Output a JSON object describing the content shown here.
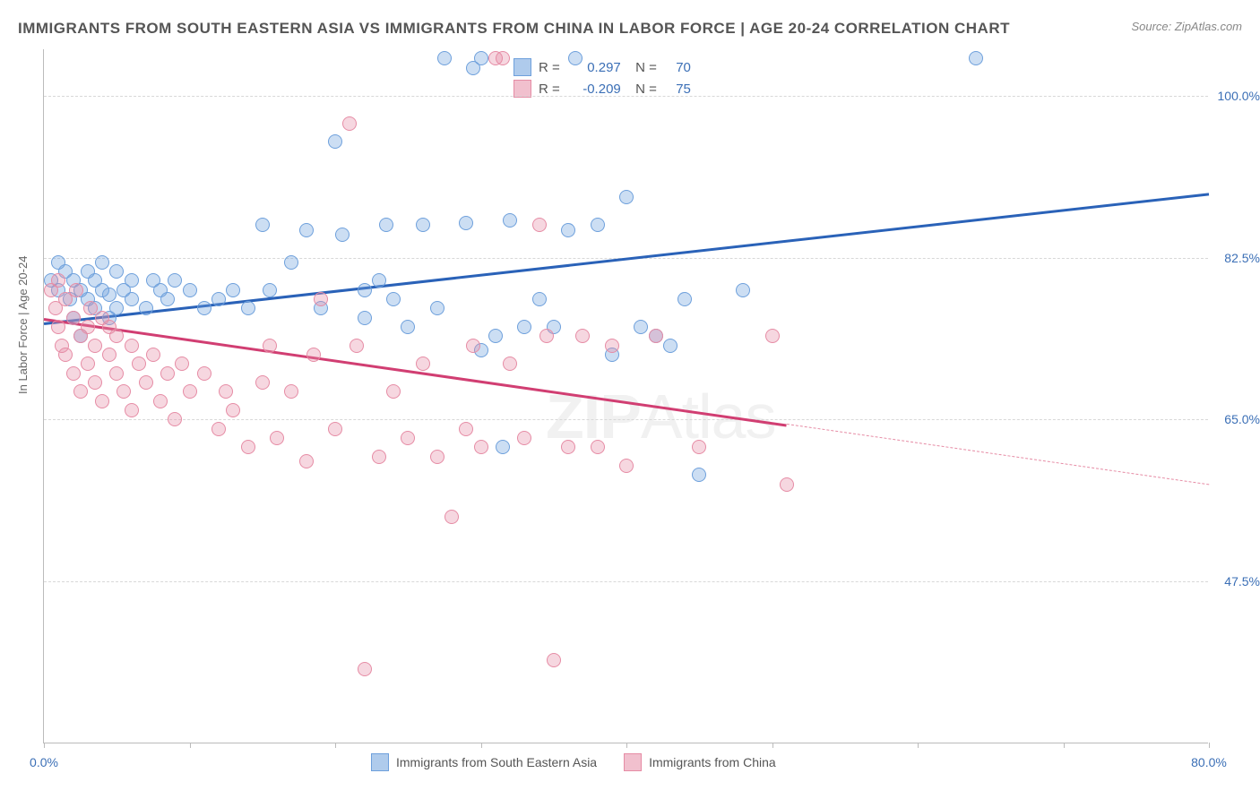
{
  "title": "IMMIGRANTS FROM SOUTH EASTERN ASIA VS IMMIGRANTS FROM CHINA IN LABOR FORCE | AGE 20-24 CORRELATION CHART",
  "source": "Source: ZipAtlas.com",
  "ylabel": "In Labor Force | Age 20-24",
  "watermark_zip": "ZIP",
  "watermark_atlas": "Atlas",
  "chart": {
    "type": "scatter",
    "xlim": [
      0,
      80
    ],
    "ylim": [
      30,
      105
    ],
    "yticks": [
      {
        "v": 47.5,
        "label": "47.5%"
      },
      {
        "v": 65.0,
        "label": "65.0%"
      },
      {
        "v": 82.5,
        "label": "82.5%"
      },
      {
        "v": 100.0,
        "label": "100.0%"
      }
    ],
    "xticks": [
      0,
      10,
      20,
      30,
      40,
      50,
      60,
      70,
      80
    ],
    "xtick_labels": {
      "0": "0.0%",
      "80": "80.0%"
    },
    "background_color": "#ffffff",
    "grid_color": "#d8d8d8",
    "series": [
      {
        "name": "Immigrants from South Eastern Asia",
        "color_fill": "rgba(110,160,220,0.35)",
        "color_stroke": "#6ea0dc",
        "marker_r": 8,
        "trend": {
          "x1": 0,
          "y1": 75.5,
          "x2": 80,
          "y2": 89.5,
          "color": "#2a62b8",
          "dash_from_x": null
        },
        "legend_r": "0.297",
        "legend_n": "70",
        "swatch_fill": "rgba(110,160,220,0.55)",
        "swatch_border": "#6ea0dc",
        "points": [
          [
            0.5,
            80
          ],
          [
            1,
            82
          ],
          [
            1,
            79
          ],
          [
            1.5,
            81
          ],
          [
            1.8,
            78
          ],
          [
            2,
            80
          ],
          [
            2,
            76
          ],
          [
            2.5,
            79
          ],
          [
            2.5,
            74
          ],
          [
            3,
            78
          ],
          [
            3,
            81
          ],
          [
            3.5,
            80
          ],
          [
            3.5,
            77
          ],
          [
            4,
            79
          ],
          [
            4,
            82
          ],
          [
            4.5,
            76
          ],
          [
            4.5,
            78.5
          ],
          [
            5,
            77
          ],
          [
            5,
            81
          ],
          [
            5.5,
            79
          ],
          [
            6,
            78
          ],
          [
            6,
            80
          ],
          [
            7,
            77
          ],
          [
            7.5,
            80
          ],
          [
            8,
            79
          ],
          [
            8.5,
            78
          ],
          [
            9,
            80
          ],
          [
            10,
            79
          ],
          [
            11,
            77
          ],
          [
            12,
            78
          ],
          [
            13,
            79
          ],
          [
            14,
            77
          ],
          [
            15,
            86
          ],
          [
            15.5,
            79
          ],
          [
            17,
            82
          ],
          [
            18,
            85.5
          ],
          [
            19,
            77
          ],
          [
            20,
            95
          ],
          [
            20.5,
            85
          ],
          [
            22,
            79
          ],
          [
            22,
            76
          ],
          [
            23,
            80
          ],
          [
            23.5,
            86
          ],
          [
            24,
            78
          ],
          [
            25,
            75
          ],
          [
            26,
            86
          ],
          [
            27,
            77
          ],
          [
            27.5,
            104
          ],
          [
            29,
            86.2
          ],
          [
            29.5,
            103
          ],
          [
            30,
            72.5
          ],
          [
            30,
            104
          ],
          [
            31,
            74
          ],
          [
            31.5,
            62
          ],
          [
            32,
            86.5
          ],
          [
            33,
            75
          ],
          [
            34,
            78
          ],
          [
            35,
            75
          ],
          [
            36,
            85.5
          ],
          [
            36.5,
            104
          ],
          [
            38,
            86
          ],
          [
            39,
            72
          ],
          [
            40,
            89
          ],
          [
            41,
            75
          ],
          [
            42,
            74
          ],
          [
            43,
            73
          ],
          [
            44,
            78
          ],
          [
            45,
            59
          ],
          [
            48,
            79
          ],
          [
            64,
            104
          ]
        ]
      },
      {
        "name": "Immigrants from China",
        "color_fill": "rgba(230,140,165,0.35)",
        "color_stroke": "#e68ca5",
        "marker_r": 8,
        "trend": {
          "x1": 0,
          "y1": 76,
          "x2": 80,
          "y2": 58,
          "color": "#d13e72",
          "dash_from_x": 51
        },
        "legend_r": "-0.209",
        "legend_n": "75",
        "swatch_fill": "rgba(230,140,165,0.55)",
        "swatch_border": "#e68ca5",
        "points": [
          [
            0.5,
            79
          ],
          [
            0.8,
            77
          ],
          [
            1,
            75
          ],
          [
            1,
            80
          ],
          [
            1.2,
            73
          ],
          [
            1.5,
            78
          ],
          [
            1.5,
            72
          ],
          [
            2,
            76
          ],
          [
            2,
            70
          ],
          [
            2.2,
            79
          ],
          [
            2.5,
            74
          ],
          [
            2.5,
            68
          ],
          [
            3,
            75
          ],
          [
            3,
            71
          ],
          [
            3.2,
            77
          ],
          [
            3.5,
            69
          ],
          [
            3.5,
            73
          ],
          [
            4,
            76
          ],
          [
            4,
            67
          ],
          [
            4.5,
            72
          ],
          [
            4.5,
            75
          ],
          [
            5,
            70
          ],
          [
            5,
            74
          ],
          [
            5.5,
            68
          ],
          [
            6,
            73
          ],
          [
            6,
            66
          ],
          [
            6.5,
            71
          ],
          [
            7,
            69
          ],
          [
            7.5,
            72
          ],
          [
            8,
            67
          ],
          [
            8.5,
            70
          ],
          [
            9,
            65
          ],
          [
            9.5,
            71
          ],
          [
            10,
            68
          ],
          [
            11,
            70
          ],
          [
            12,
            64
          ],
          [
            12.5,
            68
          ],
          [
            13,
            66
          ],
          [
            14,
            62
          ],
          [
            15,
            69
          ],
          [
            15.5,
            73
          ],
          [
            16,
            63
          ],
          [
            17,
            68
          ],
          [
            18,
            60.5
          ],
          [
            18.5,
            72
          ],
          [
            19,
            78
          ],
          [
            20,
            64
          ],
          [
            21,
            97
          ],
          [
            21.5,
            73
          ],
          [
            22,
            38
          ],
          [
            23,
            61
          ],
          [
            24,
            68
          ],
          [
            25,
            63
          ],
          [
            26,
            71
          ],
          [
            27,
            61
          ],
          [
            28,
            54.5
          ],
          [
            29,
            64
          ],
          [
            29.5,
            73
          ],
          [
            30,
            62
          ],
          [
            31,
            104
          ],
          [
            31.5,
            104
          ],
          [
            32,
            71
          ],
          [
            33,
            63
          ],
          [
            34,
            86
          ],
          [
            34.5,
            74
          ],
          [
            35,
            39
          ],
          [
            36,
            62
          ],
          [
            37,
            74
          ],
          [
            38,
            62
          ],
          [
            39,
            73
          ],
          [
            40,
            60
          ],
          [
            42,
            74
          ],
          [
            45,
            62
          ],
          [
            50,
            74
          ],
          [
            51,
            58
          ]
        ]
      }
    ]
  }
}
